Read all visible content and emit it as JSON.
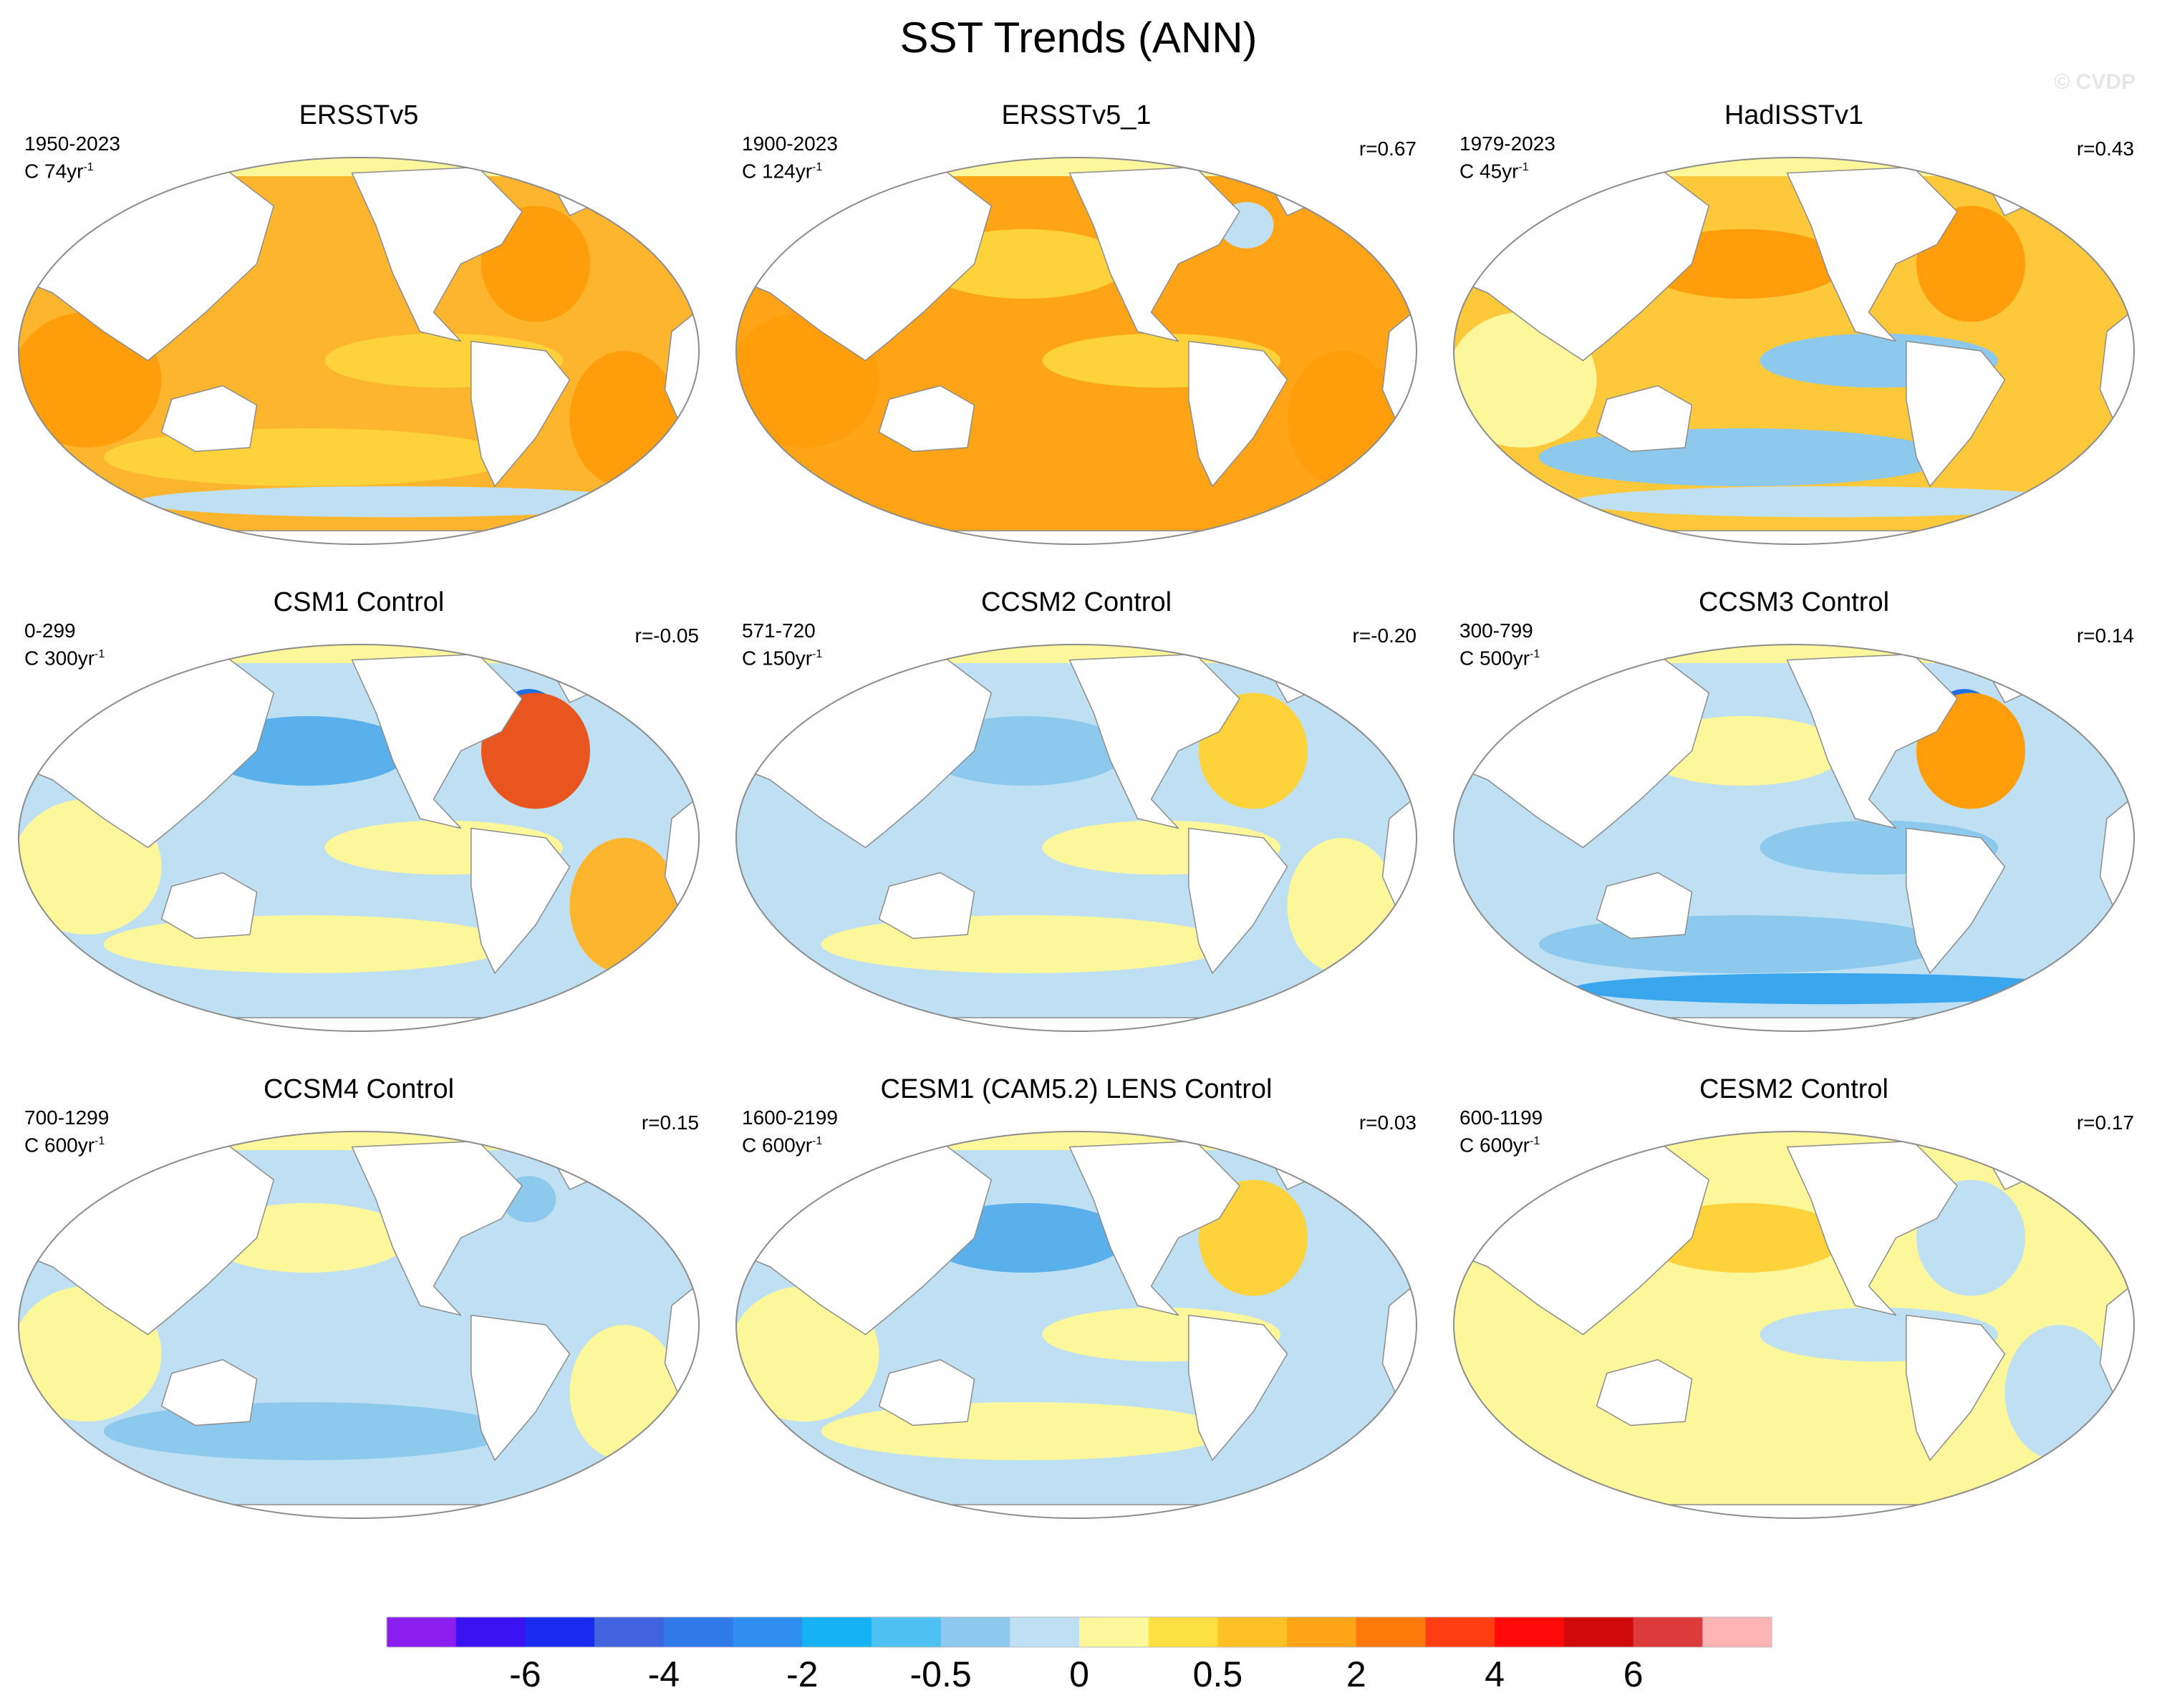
{
  "title": "SST Trends (ANN)",
  "watermark": "© CVDP",
  "colors": {
    "land": "#ffffff",
    "coast": "#8c8c8c",
    "ocean_neutral": "#bfe0f3"
  },
  "panels": [
    {
      "title": "ERSSTv5",
      "period": "1950-2023",
      "scale": "C 74yr",
      "scale_exp": "-1",
      "corr": "",
      "ocean": "#fdb52e",
      "accent": "#ff9d0a",
      "patches": [
        {
          "c": "#ff9d0a",
          "pos": "sio"
        },
        {
          "c": "#ff9d0a",
          "pos": "natl"
        },
        {
          "c": "#ff9d0a",
          "pos": "satl"
        },
        {
          "c": "#fdd23a",
          "pos": "south"
        },
        {
          "c": "#bfe0f3",
          "pos": "ant"
        },
        {
          "c": "#fdd23a",
          "pos": "epac"
        }
      ]
    },
    {
      "title": "ERSSTv5_1",
      "period": "1900-2023",
      "scale": "C 124yr",
      "scale_exp": "-1",
      "corr": "r=0.67",
      "ocean": "#fea416",
      "accent": "#ff9d0a",
      "patches": [
        {
          "c": "#ff9d0a",
          "pos": "sio"
        },
        {
          "c": "#ff9d0a",
          "pos": "satl"
        },
        {
          "c": "#fdd23a",
          "pos": "npac"
        },
        {
          "c": "#bfe0f3",
          "pos": "gre"
        },
        {
          "c": "#fdd23a",
          "pos": "epac"
        }
      ]
    },
    {
      "title": "HadISSTv1",
      "period": "1979-2023",
      "scale": "C 45yr",
      "scale_exp": "-1",
      "corr": "r=0.43",
      "ocean": "#fdc83a",
      "accent": "#ff9d0a",
      "patches": [
        {
          "c": "#8dc9ec",
          "pos": "epac"
        },
        {
          "c": "#bfe0f3",
          "pos": "ant"
        },
        {
          "c": "#8dc9ec",
          "pos": "south"
        },
        {
          "c": "#ff9d0a",
          "pos": "natl"
        },
        {
          "c": "#ff9d0a",
          "pos": "npac"
        },
        {
          "c": "#fdf79c",
          "pos": "sio"
        }
      ]
    },
    {
      "title": "CSM1 Control",
      "period": "0-299",
      "scale": "C 300yr",
      "scale_exp": "-1",
      "corr": "r=-0.05",
      "ocean": "#bfe0f3",
      "accent": "#2e8de8",
      "patches": [
        {
          "c": "#fdf79c",
          "pos": "sio"
        },
        {
          "c": "#fdf79c",
          "pos": "south"
        },
        {
          "c": "#fdb52e",
          "pos": "satl"
        },
        {
          "c": "#5ab0ea",
          "pos": "npac"
        },
        {
          "c": "#1d6fe6",
          "pos": "gre"
        },
        {
          "c": "#e8551f",
          "pos": "natl"
        },
        {
          "c": "#fdf79c",
          "pos": "epac"
        }
      ]
    },
    {
      "title": "CCSM2 Control",
      "period": "571-720",
      "scale": "C 150yr",
      "scale_exp": "-1",
      "corr": "r=-0.20",
      "ocean": "#bfe0f3",
      "accent": "#5ab0ea",
      "patches": [
        {
          "c": "#fdf79c",
          "pos": "epac"
        },
        {
          "c": "#fdf79c",
          "pos": "south"
        },
        {
          "c": "#8dc9ec",
          "pos": "npac"
        },
        {
          "c": "#fdd23a",
          "pos": "natl"
        },
        {
          "c": "#fdf79c",
          "pos": "satl"
        }
      ]
    },
    {
      "title": "CCSM3 Control",
      "period": "300-799",
      "scale": "C 500yr",
      "scale_exp": "-1",
      "corr": "r=0.14",
      "ocean": "#bfe0f3",
      "accent": "#2e8de8",
      "patches": [
        {
          "c": "#8dc9ec",
          "pos": "epac"
        },
        {
          "c": "#3aa6ee",
          "pos": "ant"
        },
        {
          "c": "#8dc9ec",
          "pos": "south"
        },
        {
          "c": "#1d6fe6",
          "pos": "gre"
        },
        {
          "c": "#ff9d0a",
          "pos": "natl"
        },
        {
          "c": "#fdf79c",
          "pos": "npac"
        }
      ]
    },
    {
      "title": "CCSM4 Control",
      "period": "700-1299",
      "scale": "C 600yr",
      "scale_exp": "-1",
      "corr": "r=0.15",
      "ocean": "#bfe0f3",
      "accent": "#8dc9ec",
      "patches": [
        {
          "c": "#fdf79c",
          "pos": "npac"
        },
        {
          "c": "#8dc9ec",
          "pos": "south"
        },
        {
          "c": "#fdf79c",
          "pos": "satl"
        },
        {
          "c": "#8dc9ec",
          "pos": "gre"
        },
        {
          "c": "#fdf79c",
          "pos": "sio"
        }
      ]
    },
    {
      "title": "CESM1 (CAM5.2) LENS Control",
      "period": "1600-2199",
      "scale": "C 600yr",
      "scale_exp": "-1",
      "corr": "r=0.03",
      "ocean": "#bfe0f3",
      "accent": "#fdf79c",
      "patches": [
        {
          "c": "#fdf79c",
          "pos": "sio"
        },
        {
          "c": "#fdf79c",
          "pos": "epac"
        },
        {
          "c": "#fdf79c",
          "pos": "south"
        },
        {
          "c": "#5ab0ea",
          "pos": "npac"
        },
        {
          "c": "#fdd23a",
          "pos": "natl"
        }
      ]
    },
    {
      "title": "CESM2 Control",
      "period": "600-1199",
      "scale": "C 600yr",
      "scale_exp": "-1",
      "corr": "r=0.17",
      "ocean": "#fdf79c",
      "accent": "#bfe0f3",
      "patches": [
        {
          "c": "#bfe0f3",
          "pos": "epac"
        },
        {
          "c": "#bfe0f3",
          "pos": "natl"
        },
        {
          "c": "#fdd23a",
          "pos": "npac"
        },
        {
          "c": "#bfe0f3",
          "pos": "satl"
        }
      ]
    }
  ],
  "colorbar": {
    "colors": [
      "#8a1ff0",
      "#3b13f2",
      "#1a2bf0",
      "#4263e0",
      "#2f7ae8",
      "#2e8ff0",
      "#15b3f5",
      "#4cc1f2",
      "#8dc9ec",
      "#bfe0f3",
      "#fdf79c",
      "#fde143",
      "#fdc124",
      "#fea416",
      "#ff7a0a",
      "#ff3d10",
      "#ff0a0a",
      "#d00a0a",
      "#dd3b3b",
      "#fcb4b4"
    ],
    "labels": [
      "-6",
      "-4",
      "-2",
      "-0.5",
      "0",
      "0.5",
      "2",
      "4",
      "6"
    ],
    "label_boundaries": [
      2,
      4,
      6,
      8,
      10,
      12,
      14,
      16,
      18
    ]
  }
}
